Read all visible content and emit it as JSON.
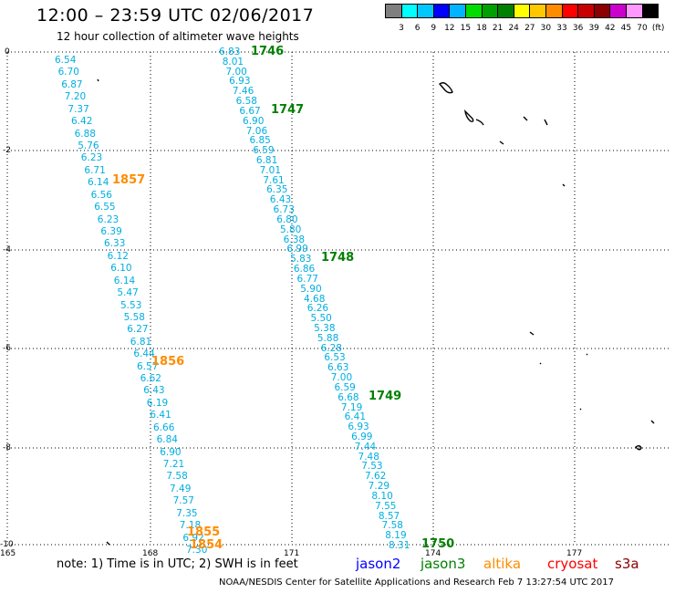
{
  "header": {
    "title": "12:00 – 23:59 UTC 02/06/2017",
    "subtitle": "12 hour collection of altimeter wave heights"
  },
  "legend": {
    "colors": [
      "#7f7f7f",
      "#00ffff",
      "#00c8ff",
      "#0000ff",
      "#00b4ff",
      "#00dc00",
      "#00a000",
      "#008000",
      "#ffff00",
      "#ffc800",
      "#ff8c00",
      "#ff0000",
      "#c80000",
      "#8b0000",
      "#cc00cc",
      "#ff99ff",
      "#000000"
    ],
    "labels": [
      "3",
      "6",
      "9",
      "12",
      "15",
      "18",
      "21",
      "24",
      "27",
      "30",
      "33",
      "36",
      "39",
      "42",
      "45",
      "70",
      "(ft)"
    ]
  },
  "axes": {
    "y_ticks": [
      "0",
      "-2",
      "-4",
      "-6",
      "-8",
      "-10"
    ],
    "x_ticks": [
      "165",
      "168",
      "171",
      "174",
      "177"
    ]
  },
  "tracks": [
    {
      "id": "left",
      "values": [
        "6.54",
        "6.70",
        "6.87",
        "7.20",
        "7.37",
        "6.42",
        "6.88",
        "5.76",
        "6.23",
        "6.71",
        "6.14",
        "6.56",
        "6.55",
        "6.23",
        "6.39",
        "6.33",
        "6.12",
        "6.10",
        "6.14",
        "5.47",
        "5.53",
        "5.58",
        "6.27",
        "6.81",
        "6.44",
        "6.57",
        "6.62",
        "6.43",
        "6.19",
        "6.41",
        "6.66",
        "6.84",
        "6.90",
        "7.21",
        "7.58",
        "7.49",
        "7.57",
        "7.35",
        "7.18",
        "6.92",
        "7.30"
      ]
    },
    {
      "id": "right",
      "values": [
        "6.83",
        "8.01",
        "7.00",
        "6.93",
        "7.46",
        "6.58",
        "6.67",
        "6.90",
        "7.06",
        "6.85",
        "6.59",
        "6.81",
        "7.01",
        "7.61",
        "6.35",
        "6.43",
        "6.73",
        "6.80",
        "5.80",
        "6.38",
        "6.99",
        "5.83",
        "6.86",
        "6.77",
        "5.90",
        "4.68",
        "6.26",
        "5.50",
        "5.38",
        "5.88",
        "6.28",
        "6.53",
        "6.63",
        "7.00",
        "6.59",
        "6.68",
        "7.19",
        "6.41",
        "6.93",
        "6.99",
        "7.44",
        "7.48",
        "7.53",
        "7.62",
        "7.29",
        "8.10",
        "7.55",
        "8.57",
        "7.58",
        "8.19",
        "8.31"
      ]
    }
  ],
  "pass_labels": [
    {
      "text": "1746",
      "color": "#008000"
    },
    {
      "text": "1747",
      "color": "#008000"
    },
    {
      "text": "1748",
      "color": "#008000"
    },
    {
      "text": "1749",
      "color": "#008000"
    },
    {
      "text": "1750",
      "color": "#008000"
    },
    {
      "text": "1857",
      "color": "#ff8c00"
    },
    {
      "text": "1856",
      "color": "#ff8c00"
    },
    {
      "text": "1855",
      "color": "#ff8c00"
    },
    {
      "text": "1854",
      "color": "#ff8c00"
    }
  ],
  "note": "note:  1) Time is in UTC;  2) SWH is in feet",
  "satellites": [
    {
      "name": "jason2",
      "color": "#0000ff"
    },
    {
      "name": "jason3",
      "color": "#008000"
    },
    {
      "name": "altika",
      "color": "#ff8c00"
    },
    {
      "name": "cryosat",
      "color": "#ff0000"
    },
    {
      "name": "s3a",
      "color": "#8b0000"
    }
  ],
  "footer": "NOAA/NESDIS Center for Satellite Applications and Research    Feb  7 13:27:54 UTC 2017"
}
